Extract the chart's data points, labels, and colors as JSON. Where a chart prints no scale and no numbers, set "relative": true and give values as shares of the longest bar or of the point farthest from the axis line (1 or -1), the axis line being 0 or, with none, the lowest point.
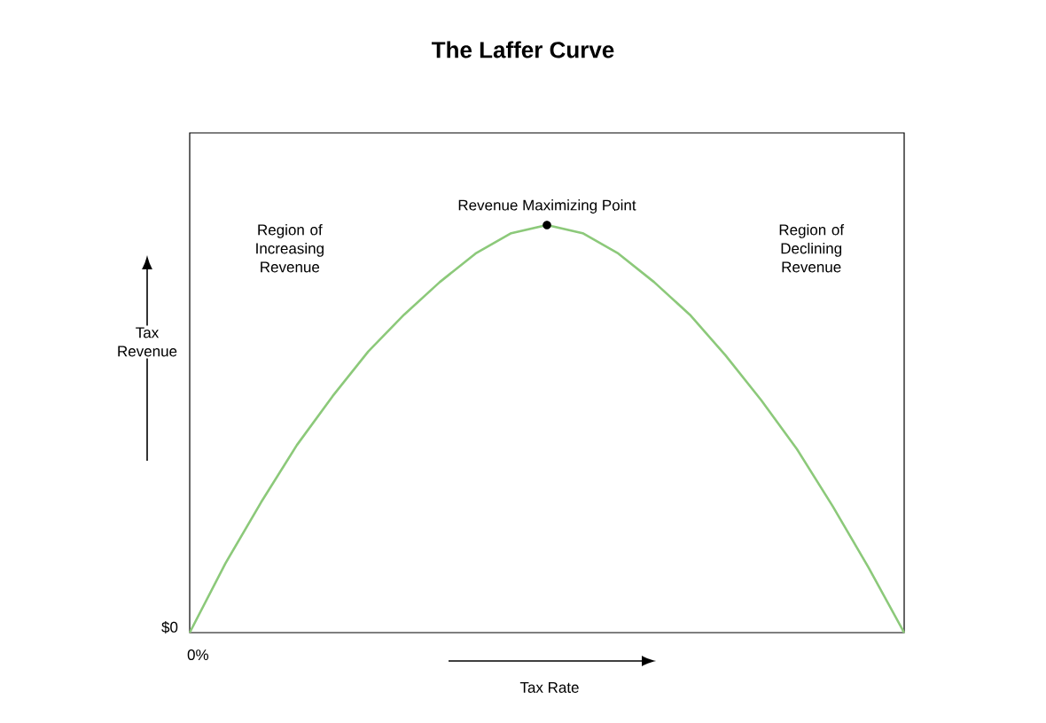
{
  "chart_data": {
    "type": "line",
    "title": "The Laffer Curve",
    "xlabel": "Tax Rate",
    "ylabel": "Tax Revenue",
    "relative": true,
    "categories": [
      null,
      null,
      null,
      null,
      null,
      null,
      null,
      null,
      null,
      null,
      null,
      null,
      null,
      null,
      null,
      null,
      null,
      null,
      null,
      null,
      null
    ],
    "series": [
      {
        "color": "#8cc97a",
        "marker": "none",
        "values": [
          0,
          0.17,
          0.32,
          0.46,
          0.58,
          0.69,
          0.78,
          0.86,
          0.93,
          0.98,
          1.0,
          0.98,
          0.93,
          0.86,
          0.78,
          0.68,
          0.57,
          0.45,
          0.31,
          0.16,
          0
        ]
      }
    ],
    "annotations": [
      {
        "text": "Revenue Maximizing Point",
        "y": 1.0
      },
      "Region of Increasing Revenue",
      "Region of Declining Revenue",
      "$0",
      "0%"
    ]
  }
}
